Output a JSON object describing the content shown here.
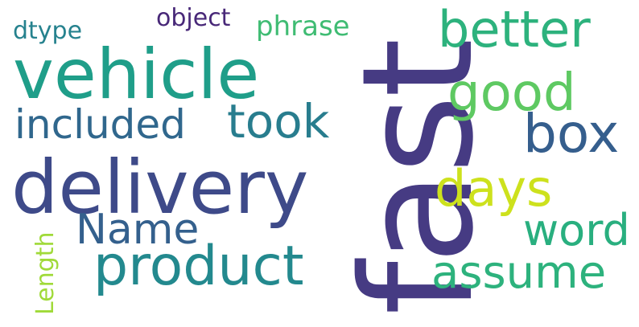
{
  "words": [
    {
      "key": "fast",
      "text": "fast",
      "color": "#463b83"
    },
    {
      "key": "delivery",
      "text": "delivery",
      "color": "#3e4a89"
    },
    {
      "key": "vehicle",
      "text": "vehicle",
      "color": "#1f9e89"
    },
    {
      "key": "product",
      "text": "product",
      "color": "#23898e"
    },
    {
      "key": "included",
      "text": "included",
      "color": "#30678d"
    },
    {
      "key": "took",
      "text": "took",
      "color": "#287d8e"
    },
    {
      "key": "better",
      "text": "better",
      "color": "#2db27d"
    },
    {
      "key": "good",
      "text": "good",
      "color": "#5ec962"
    },
    {
      "key": "box",
      "text": "box",
      "color": "#355e8d"
    },
    {
      "key": "days",
      "text": "days",
      "color": "#cde11d"
    },
    {
      "key": "word",
      "text": "word",
      "color": "#29af7f"
    },
    {
      "key": "assume",
      "text": "assume",
      "color": "#2db27d"
    },
    {
      "key": "name",
      "text": "Name",
      "color": "#34608d"
    },
    {
      "key": "phrase",
      "text": "phrase",
      "color": "#3fbc73"
    },
    {
      "key": "object",
      "text": "object",
      "color": "#482878"
    },
    {
      "key": "dtype",
      "text": "dtype",
      "color": "#26828e"
    },
    {
      "key": "length",
      "text": "Length",
      "color": "#a0da39"
    }
  ]
}
